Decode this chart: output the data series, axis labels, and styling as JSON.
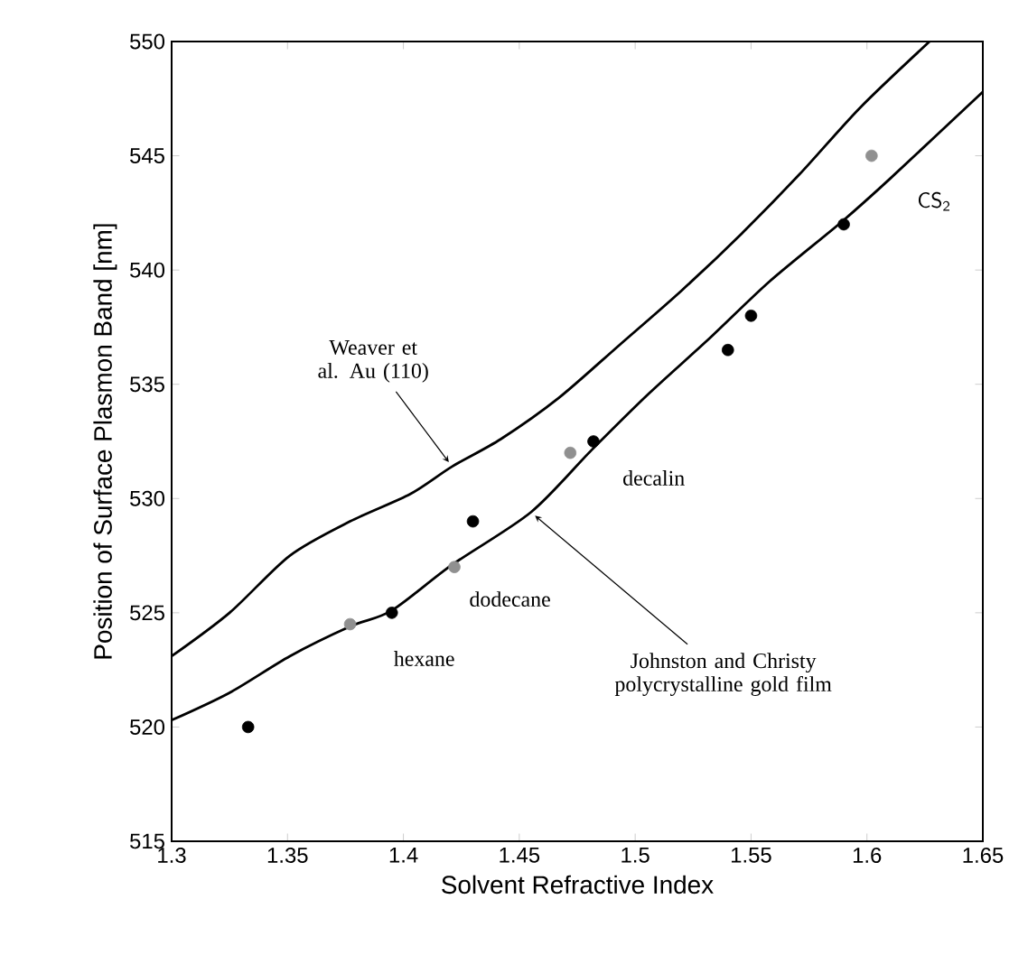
{
  "chart_data": {
    "type": "scatter",
    "xlabel": "Solvent Refractive Index",
    "ylabel": "Position of Surface Plasmon Band [nm]",
    "xlim": [
      1.3,
      1.65
    ],
    "ylim": [
      515,
      550
    ],
    "xticks": [
      1.3,
      1.35,
      1.4,
      1.45,
      1.5,
      1.55,
      1.6,
      1.65
    ],
    "yticks": [
      515,
      520,
      525,
      530,
      535,
      540,
      545,
      550
    ],
    "grid": false,
    "series": [
      {
        "type": "line",
        "color": "#000000",
        "x": [
          1.3,
          1.325,
          1.351,
          1.377,
          1.403,
          1.421,
          1.442,
          1.467,
          1.493,
          1.52,
          1.546,
          1.571,
          1.597,
          1.627
        ],
        "values": [
          523.1,
          525.0,
          527.5,
          529.0,
          530.2,
          531.4,
          532.6,
          534.4,
          536.7,
          539.1,
          541.6,
          544.2,
          547.1,
          550.0
        ]
      },
      {
        "type": "line",
        "color": "#000000",
        "x": [
          1.3,
          1.325,
          1.351,
          1.377,
          1.395,
          1.421,
          1.455,
          1.481,
          1.506,
          1.532,
          1.558,
          1.589,
          1.61,
          1.65
        ],
        "values": [
          520.3,
          521.5,
          523.1,
          524.4,
          525.1,
          527.1,
          529.4,
          532.1,
          534.6,
          537.0,
          539.5,
          542.1,
          544.0,
          547.8
        ]
      },
      {
        "marker": "circle",
        "color": "#000000",
        "x": [
          1.333,
          1.395,
          1.43,
          1.482,
          1.54,
          1.55,
          1.59
        ],
        "values": [
          520.0,
          525.0,
          529.0,
          532.5,
          536.5,
          538.0,
          542.0
        ]
      },
      {
        "marker": "circle",
        "color": "#909090",
        "x": [
          1.377,
          1.422,
          1.472,
          1.602
        ],
        "values": [
          524.5,
          527.0,
          532.0,
          545.0
        ]
      }
    ],
    "annotations": [
      {
        "text": "Weaver et al. Au (110)",
        "x": 1.421,
        "y": 531.4
      },
      {
        "text": "Johnston and Christy polycrystalline gold film",
        "x": 1.455,
        "y": 529.4
      },
      {
        "text": "hexane",
        "x": 1.395,
        "y": 525.0
      },
      {
        "text": "dodecane",
        "x": 1.422,
        "y": 527.0
      },
      {
        "text": "decalin",
        "x": 1.482,
        "y": 532.5
      },
      {
        "text": "CS$_{2}$",
        "x": 1.61,
        "y": 544.0
      }
    ]
  }
}
